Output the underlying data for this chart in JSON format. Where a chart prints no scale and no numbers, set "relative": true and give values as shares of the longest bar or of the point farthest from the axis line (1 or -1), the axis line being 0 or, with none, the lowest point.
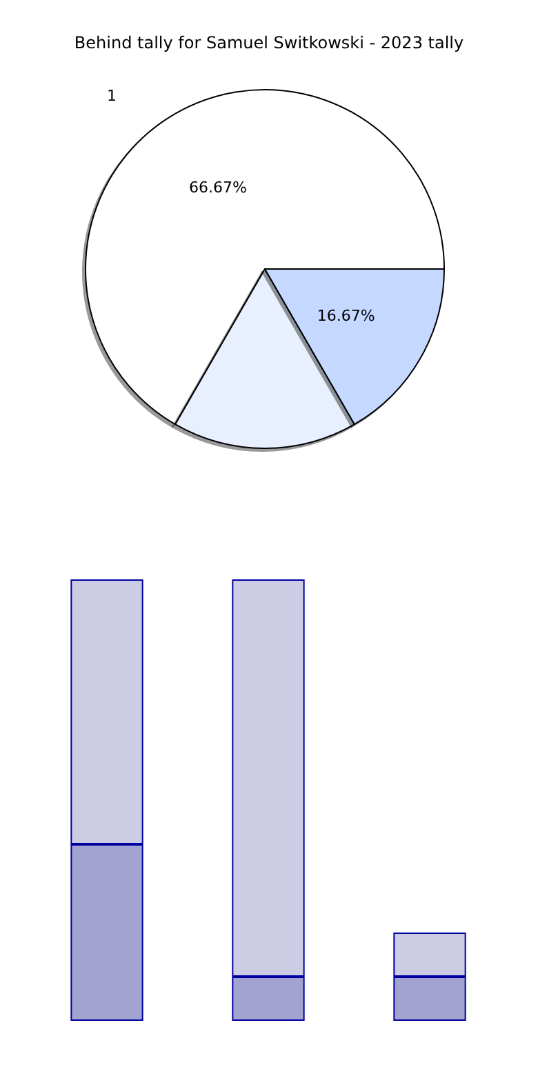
{
  "chart_data": [
    {
      "type": "pie",
      "title": "Behind tally for Samuel Switkowski - 2023 tally",
      "categories": [
        "1",
        null,
        null
      ],
      "values": [
        66.67,
        16.66,
        16.67
      ],
      "colors": [
        "#ffffff",
        "#e8f0ff",
        "#c5d8ff"
      ],
      "value_labels": [
        "66.67%",
        null,
        "16.67%"
      ]
    },
    {
      "type": "bar",
      "relative": true,
      "stacked": true,
      "categories": [
        null,
        null,
        null
      ],
      "series": [
        {
          "color": "#a3a3d1",
          "values": [
            0.4,
            0.1,
            0.1
          ]
        },
        {
          "color": "#ccccE5",
          "values": [
            0.6,
            0.9,
            0.1
          ]
        }
      ]
    }
  ]
}
